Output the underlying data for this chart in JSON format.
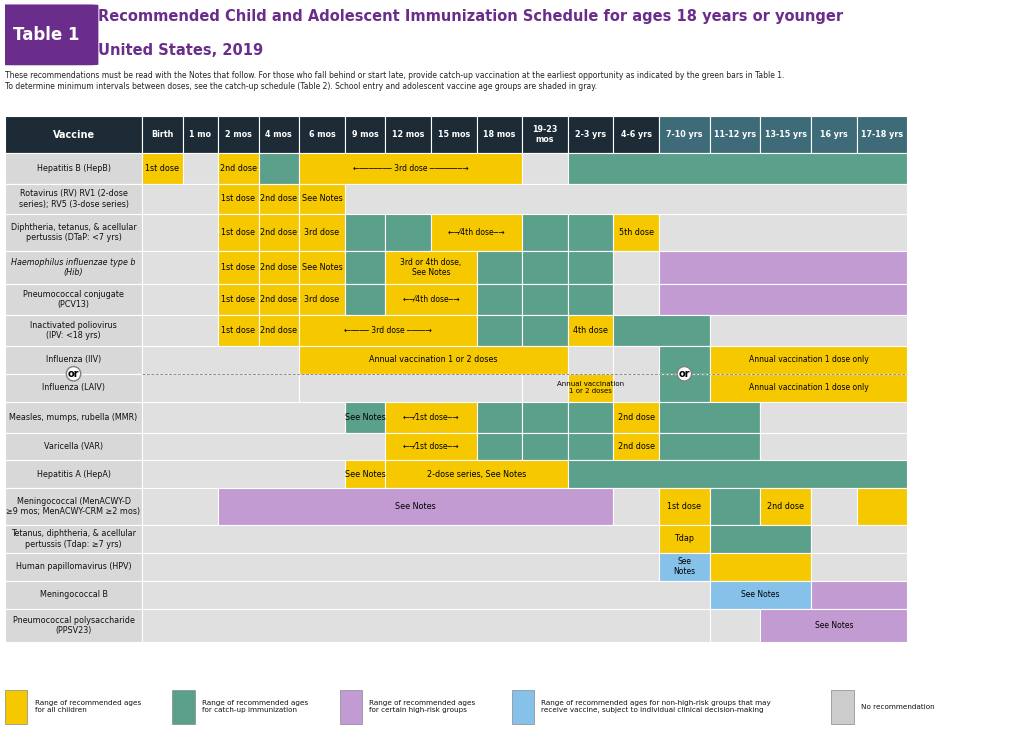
{
  "title_line1": "Recommended Child and Adolescent Immunization Schedule for ages 18 years or younger",
  "title_line2": "United States, 2019",
  "table_label": "Table 1",
  "subtitle": "These recommendations must be read with the Notes that follow. For those who fall behind or start late, provide catch-up vaccination at the earliest opportunity as indicated by the green bars in Table 1.\nTo determine minimum intervals between doses, see the catch-up schedule (Table 2). School entry and adolescent vaccine age groups are shaded in gray.",
  "colors": {
    "yellow": "#F5C800",
    "teal": "#5BA08A",
    "purple": "#C39BD3",
    "light_blue": "#85C1E9",
    "gray": "#CCCCCC",
    "header_dark": "#1C2B35",
    "header_teal": "#3D6B78",
    "table1_bg": "#6B2D8B",
    "title_purple": "#6B2D8B",
    "white": "#FFFFFF",
    "light_gray_row": "#E0E0E0",
    "vaccine_col_bg": "#D8D8D8"
  },
  "col_headers": [
    "Vaccine",
    "Birth",
    "1 mo",
    "2 mos",
    "4 mos",
    "6 mos",
    "9 mos",
    "12 mos",
    "15 mos",
    "18 mos",
    "19-23\nmos",
    "2-3 yrs",
    "4-6 yrs",
    "7-10 yrs",
    "11-12 yrs",
    "13-15 yrs",
    "16 yrs",
    "17-18 yrs"
  ],
  "vaccines": [
    "Hepatitis B (HepB)",
    "Rotavirus (RV) RV1 (2-dose\nseries); RV5 (3-dose series)",
    "Diphtheria, tetanus, & acellular\npertussis (DTaP: <7 yrs)",
    "Haemophilus influenzae type b\n(Hib)",
    "Pneumococcal conjugate\n(PCV13)",
    "Inactivated poliovirus\n(IPV: <18 yrs)",
    "Influenza (IIV)",
    "Influenza (LAIV)",
    "Measles, mumps, rubella (MMR)",
    "Varicella (VAR)",
    "Hepatitis A (HepA)",
    "Meningococcal (MenACWY-D\n≥9 mos; MenACWY-CRM ≥2 mos)",
    "Tetanus, diphtheria, & acellular\npertussis (Tdap: ≥7 yrs)",
    "Human papillomavirus (HPV)",
    "Meningococcal B",
    "Pneumococcal polysaccharide\n(PPSV23)"
  ],
  "legend": [
    {
      "color": "#F5C800",
      "label": "Range of recommended ages\nfor all children"
    },
    {
      "color": "#5BA08A",
      "label": "Range of recommended ages\nfor catch-up immunization"
    },
    {
      "color": "#C39BD3",
      "label": "Range of recommended ages\nfor certain high-risk groups"
    },
    {
      "color": "#85C1E9",
      "label": "Range of recommended ages for non-high-risk groups that may\nreceive vaccine, subject to individual clinical decision-making"
    },
    {
      "color": "#CCCCCC",
      "label": "No recommendation"
    }
  ]
}
